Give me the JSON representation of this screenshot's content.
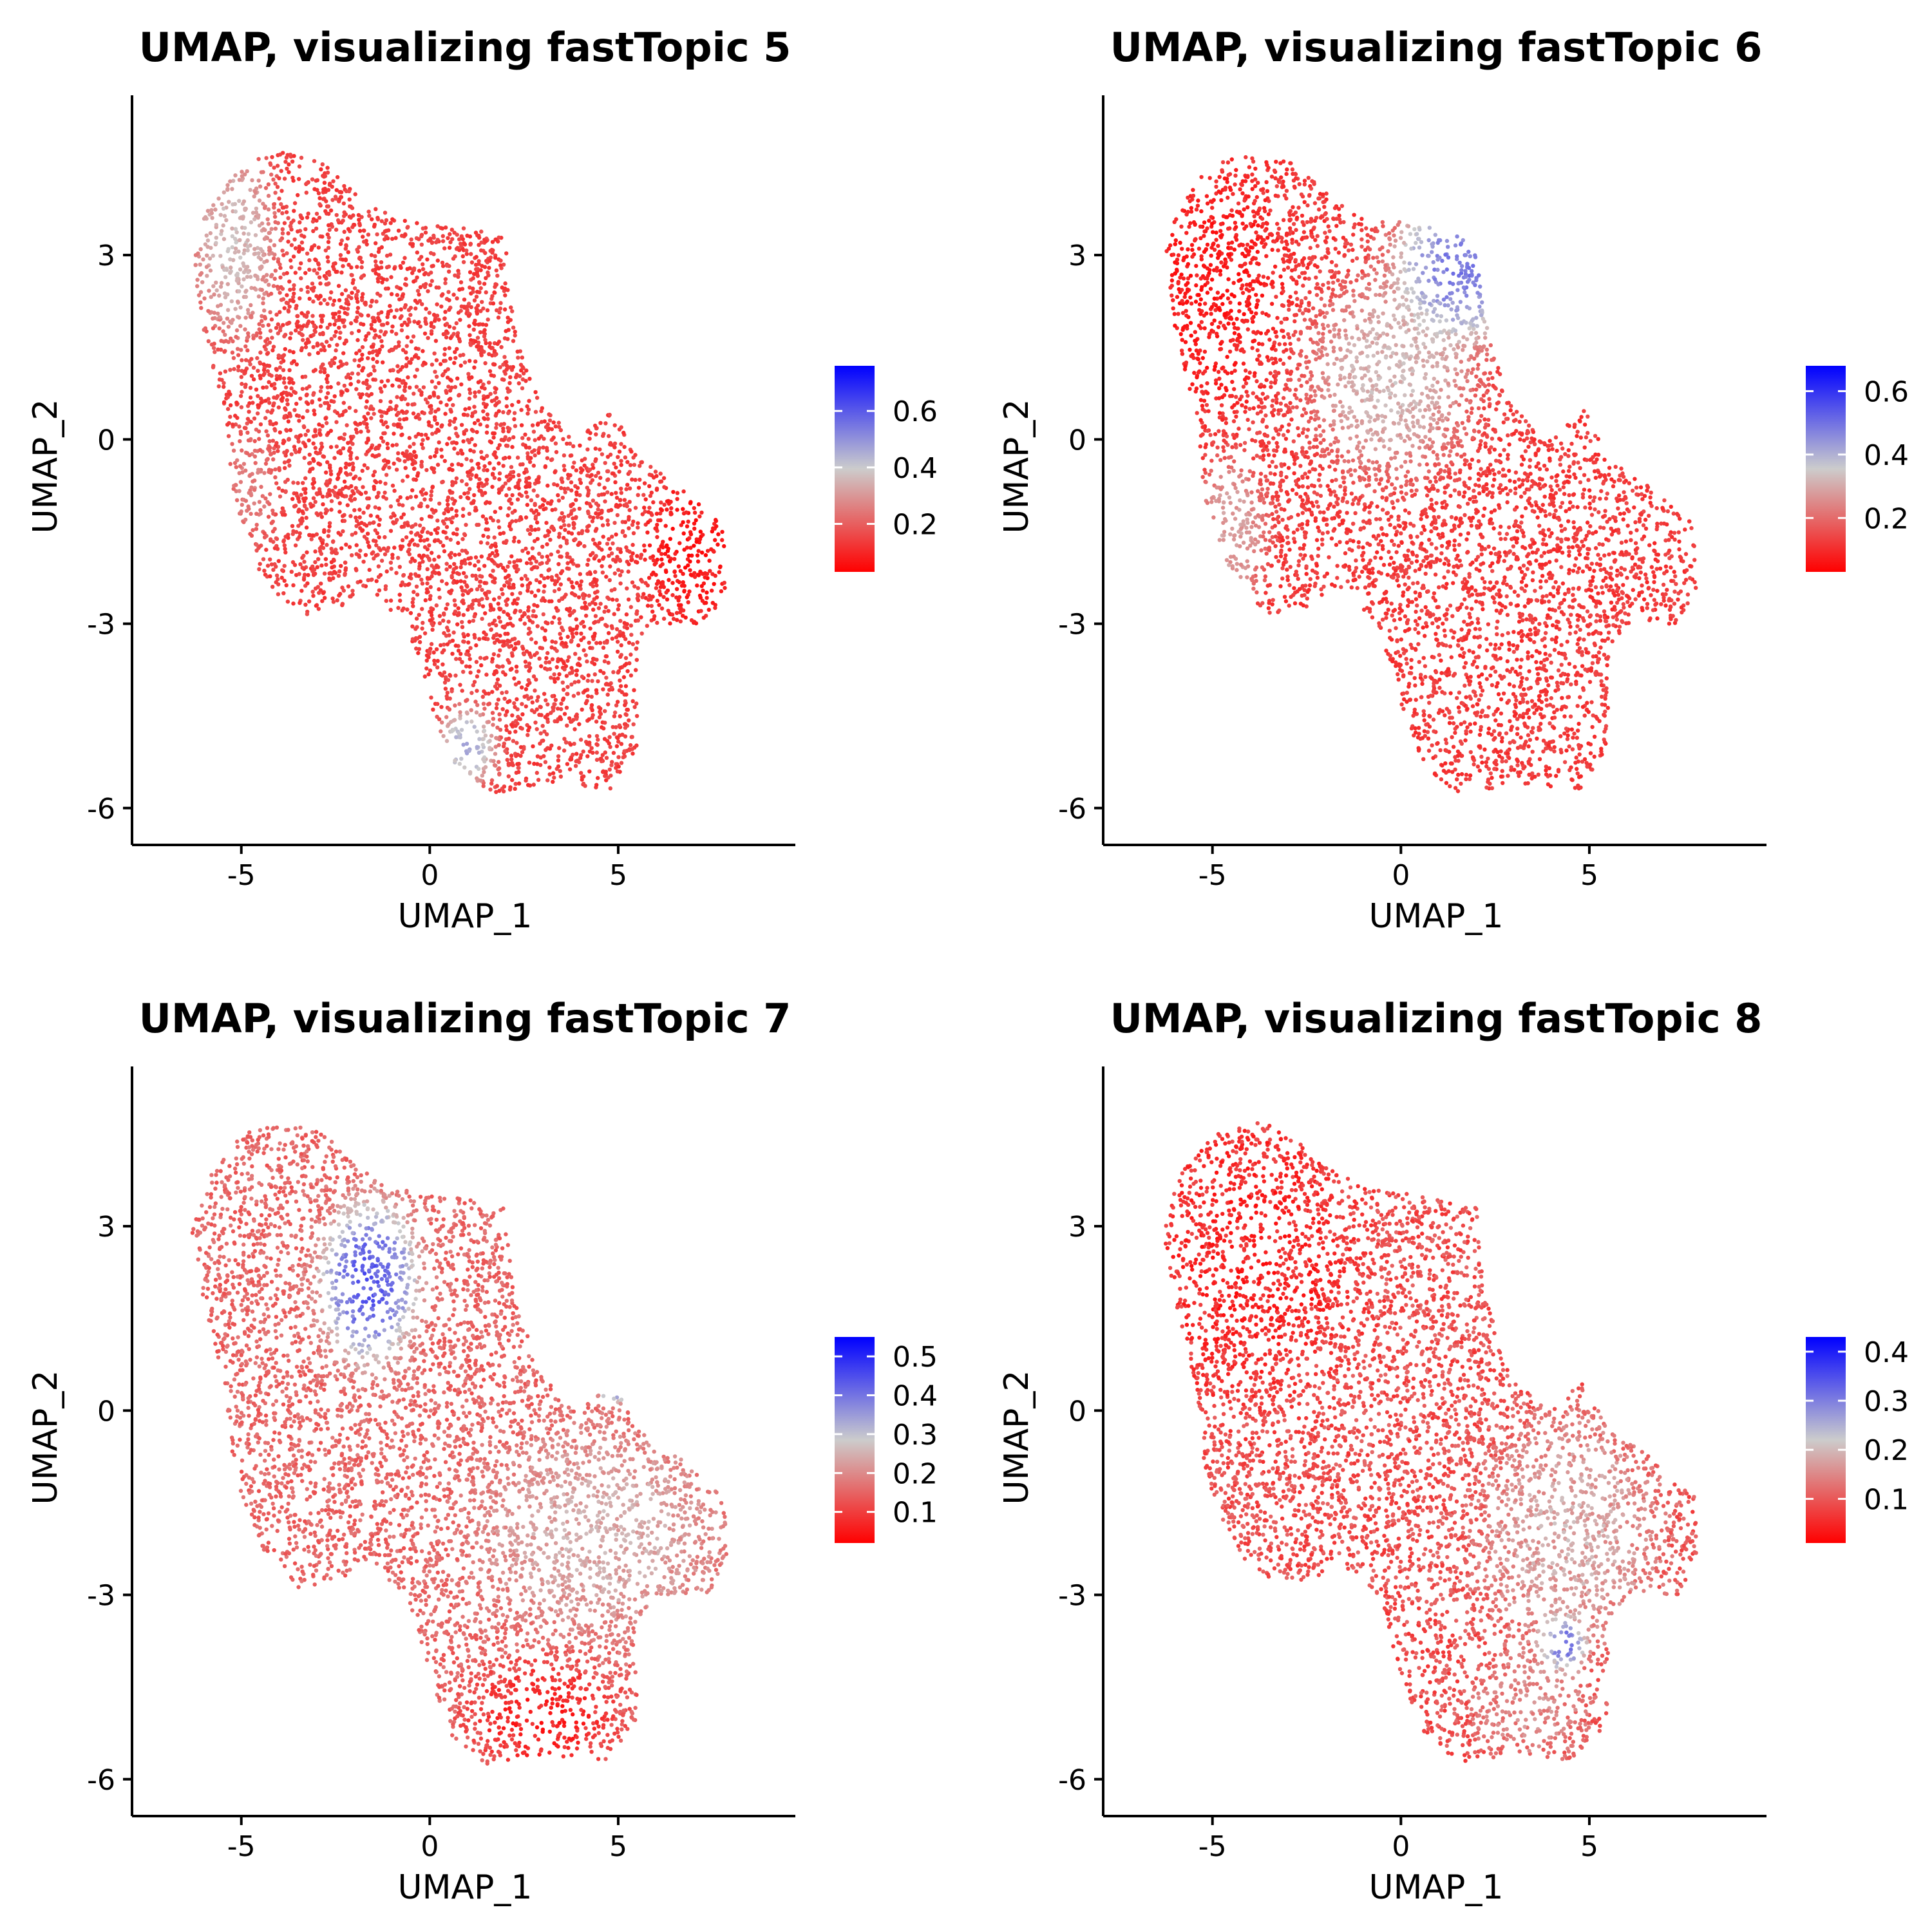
{
  "colors": {
    "low": "#ff0000",
    "mid": "#cccccc",
    "high": "#0000ff",
    "axis": "#000000"
  },
  "chart_data": [
    {
      "type": "scatter",
      "title": "UMAP, visualizing fastTopic 5",
      "xlabel": "UMAP_1",
      "ylabel": "UMAP_2",
      "xlim": [
        -7.9,
        9.7
      ],
      "ylim": [
        -6.6,
        5.6
      ],
      "x_ticks": [
        -5,
        0,
        5
      ],
      "x_tick_labels": [
        "-5",
        "0",
        "5"
      ],
      "y_ticks": [
        3,
        0,
        -3,
        -6
      ],
      "y_tick_labels": [
        "3",
        "0",
        "-3",
        "-6"
      ],
      "grid": false,
      "legend": "right",
      "color_range": [
        0.03,
        0.76
      ],
      "legend_ticks": [
        0.2,
        0.4,
        0.6
      ],
      "legend_tick_labels": [
        "0.2",
        "0.4",
        "0.6"
      ],
      "regions": [
        {
          "x": -5.2,
          "y": 3.2,
          "sx": 0.7,
          "sy": 1.0,
          "value": 0.4,
          "weight": 1
        },
        {
          "x": 1.0,
          "y": -5.0,
          "sx": 0.5,
          "sy": 0.4,
          "value": 0.5,
          "weight": 1
        },
        {
          "x": 7.0,
          "y": -1.8,
          "sx": 0.8,
          "sy": 0.8,
          "value": 0.05,
          "weight": 1
        },
        {
          "x": -4.8,
          "y": -0.8,
          "sx": 0.5,
          "sy": 0.6,
          "value": 0.28,
          "weight": 0.8
        }
      ],
      "base_value": 0.14
    },
    {
      "type": "scatter",
      "title": "UMAP, visualizing fastTopic 6",
      "xlabel": "UMAP_1",
      "ylabel": "UMAP_2",
      "xlim": [
        -7.9,
        9.7
      ],
      "ylim": [
        -6.6,
        5.6
      ],
      "x_ticks": [
        -5,
        0,
        5
      ],
      "x_tick_labels": [
        "-5",
        "0",
        "5"
      ],
      "y_ticks": [
        3,
        0,
        -3,
        -6
      ],
      "y_tick_labels": [
        "3",
        "0",
        "-3",
        "-6"
      ],
      "grid": false,
      "legend": "right",
      "color_range": [
        0.03,
        0.68
      ],
      "legend_ticks": [
        0.2,
        0.4,
        0.6
      ],
      "legend_tick_labels": [
        "0.2",
        "0.4",
        "0.6"
      ],
      "regions": [
        {
          "x": 1.5,
          "y": 2.8,
          "sx": 1.1,
          "sy": 0.8,
          "value": 0.55,
          "weight": 1
        },
        {
          "x": -0.3,
          "y": 1.0,
          "sx": 1.4,
          "sy": 1.0,
          "value": 0.36,
          "weight": 0.9
        },
        {
          "x": -4.5,
          "y": -1.5,
          "sx": 0.6,
          "sy": 0.8,
          "value": 0.32,
          "weight": 0.8
        },
        {
          "x": -5.0,
          "y": 2.5,
          "sx": 1.2,
          "sy": 1.2,
          "value": 0.06,
          "weight": 1
        }
      ],
      "base_value": 0.12
    },
    {
      "type": "scatter",
      "title": "UMAP, visualizing fastTopic 7",
      "xlabel": "UMAP_1",
      "ylabel": "UMAP_2",
      "xlim": [
        -7.9,
        9.7
      ],
      "ylim": [
        -6.6,
        5.6
      ],
      "x_ticks": [
        -5,
        0,
        5
      ],
      "x_tick_labels": [
        "-5",
        "0",
        "5"
      ],
      "y_ticks": [
        3,
        0,
        -3,
        -6
      ],
      "y_tick_labels": [
        "3",
        "0",
        "-3",
        "-6"
      ],
      "grid": false,
      "legend": "right",
      "color_range": [
        0.02,
        0.55
      ],
      "legend_ticks": [
        0.1,
        0.2,
        0.3,
        0.4,
        0.5
      ],
      "legend_tick_labels": [
        "0.1",
        "0.2",
        "0.3",
        "0.4",
        "0.5"
      ],
      "regions": [
        {
          "x": -1.6,
          "y": 2.1,
          "sx": 0.8,
          "sy": 0.8,
          "value": 0.48,
          "weight": 1
        },
        {
          "x": 4.9,
          "y": 0.5,
          "sx": 0.3,
          "sy": 0.25,
          "value": 0.45,
          "weight": 1
        },
        {
          "x": 4.5,
          "y": -2.0,
          "sx": 2.0,
          "sy": 1.0,
          "value": 0.26,
          "weight": 0.9
        },
        {
          "x": 3.0,
          "y": -5.0,
          "sx": 1.2,
          "sy": 0.6,
          "value": 0.05,
          "weight": 1
        }
      ],
      "base_value": 0.15
    },
    {
      "type": "scatter",
      "title": "UMAP, visualizing fastTopic 8",
      "xlabel": "UMAP_1",
      "ylabel": "UMAP_2",
      "xlim": [
        -7.9,
        9.7
      ],
      "ylim": [
        -6.6,
        5.6
      ],
      "x_ticks": [
        -5,
        0,
        5
      ],
      "x_tick_labels": [
        "-5",
        "0",
        "5"
      ],
      "y_ticks": [
        3,
        0,
        -3,
        -6
      ],
      "y_tick_labels": [
        "3",
        "0",
        "-3",
        "-6"
      ],
      "grid": false,
      "legend": "right",
      "color_range": [
        0.01,
        0.43
      ],
      "legend_ticks": [
        0.1,
        0.2,
        0.3,
        0.4
      ],
      "legend_tick_labels": [
        "0.1",
        "0.2",
        "0.3",
        "0.4"
      ],
      "regions": [
        {
          "x": 4.3,
          "y": -3.8,
          "sx": 0.4,
          "sy": 0.3,
          "value": 0.36,
          "weight": 1
        },
        {
          "x": 4.5,
          "y": -2.0,
          "sx": 1.5,
          "sy": 1.2,
          "value": 0.2,
          "weight": 0.9
        },
        {
          "x": 3.5,
          "y": -4.8,
          "sx": 1.0,
          "sy": 0.6,
          "value": 0.16,
          "weight": 0.8
        },
        {
          "x": -4.0,
          "y": 2.5,
          "sx": 1.8,
          "sy": 1.5,
          "value": 0.04,
          "weight": 1
        }
      ],
      "base_value": 0.09
    }
  ]
}
